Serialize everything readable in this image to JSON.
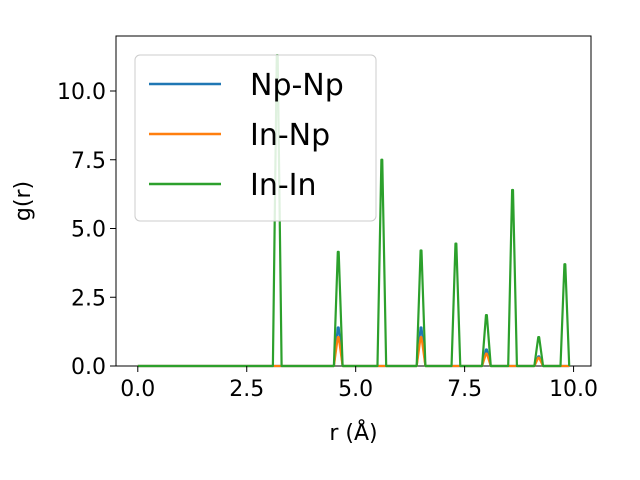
{
  "chart_data": {
    "type": "line",
    "xlabel": "r (Å)",
    "ylabel": "g(r)",
    "xlim": [
      -0.5,
      10.4
    ],
    "ylim": [
      0,
      12
    ],
    "xticks": [
      "0.0",
      "2.5",
      "5.0",
      "7.5",
      "10.0"
    ],
    "yticks": [
      "0.0",
      "2.5",
      "5.0",
      "7.5",
      "10.0"
    ],
    "legend_position": "top-left",
    "grid": false,
    "series": [
      {
        "name": "Np-Np",
        "color": "#1f77b4",
        "peaks": [
          [
            4.6,
            1.4
          ],
          [
            6.5,
            1.4
          ],
          [
            8.0,
            0.6
          ],
          [
            9.2,
            0.35
          ]
        ]
      },
      {
        "name": "In-Np",
        "color": "#ff7f0e",
        "peaks": [
          [
            4.6,
            1.05
          ],
          [
            6.5,
            1.05
          ],
          [
            8.0,
            0.45
          ],
          [
            9.2,
            0.3
          ]
        ]
      },
      {
        "name": "In-In",
        "color": "#2ca02c",
        "peaks": [
          [
            3.2,
            11.3
          ],
          [
            4.6,
            4.15
          ],
          [
            5.6,
            7.5
          ],
          [
            6.5,
            4.2
          ],
          [
            7.3,
            4.45
          ],
          [
            8.0,
            1.85
          ],
          [
            8.6,
            6.4
          ],
          [
            9.2,
            1.05
          ],
          [
            9.8,
            3.7
          ]
        ]
      }
    ]
  }
}
